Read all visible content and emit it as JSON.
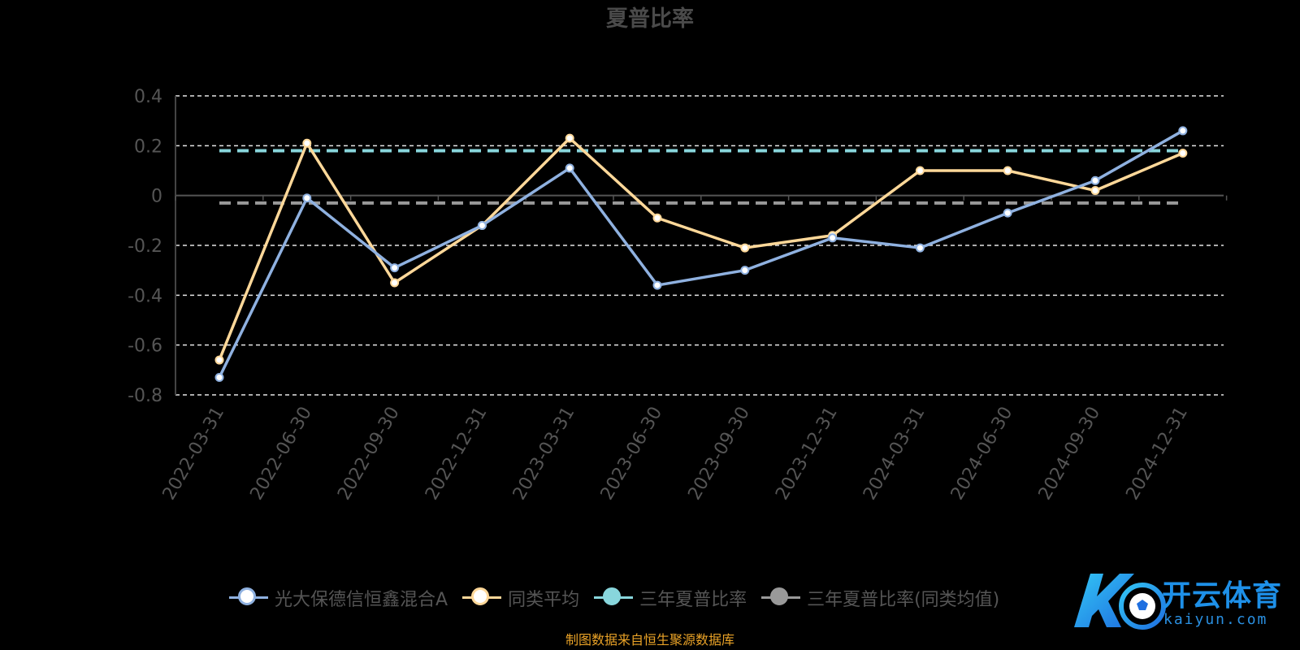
{
  "chart_data": {
    "type": "line",
    "title": "夏普比率",
    "categories": [
      "2022-03-31",
      "2022-06-30",
      "2022-09-30",
      "2022-12-31",
      "2023-03-31",
      "2023-06-30",
      "2023-09-30",
      "2023-12-31",
      "2024-03-31",
      "2024-06-30",
      "2024-09-30",
      "2024-12-31"
    ],
    "ylim": [
      -0.8,
      0.4
    ],
    "yticks": [
      0.4,
      0.2,
      0,
      -0.2,
      -0.4,
      -0.6,
      -0.8
    ],
    "ytick_labels": [
      "0.4",
      "0.2",
      "0",
      "-0.2",
      "-0.4",
      "-0.6",
      "-0.8"
    ],
    "grid": true,
    "legend_position": "bottom",
    "series": [
      {
        "name": "光大保德信恒鑫混合A",
        "color": "#8fb1e0",
        "values": [
          -0.73,
          -0.01,
          -0.29,
          -0.12,
          0.11,
          -0.36,
          -0.3,
          -0.17,
          -0.21,
          -0.07,
          0.06,
          0.26
        ]
      },
      {
        "name": "同类平均",
        "color": "#ffd899",
        "values": [
          -0.66,
          0.21,
          -0.35,
          -0.12,
          0.23,
          -0.09,
          -0.21,
          -0.16,
          0.1,
          0.1,
          0.02,
          0.17
        ]
      }
    ],
    "reference_lines": [
      {
        "name": "三年夏普比率",
        "color": "#88d6dc",
        "value": 0.18
      },
      {
        "name": "三年夏普比率(同类均值)",
        "color": "#999999",
        "value": -0.03
      }
    ]
  },
  "legend": {
    "items": [
      {
        "label": "光大保德信恒鑫混合A",
        "line_color": "#8fb1e0",
        "dot_color": "#ffffff",
        "dot_border": "#8fb1e0"
      },
      {
        "label": "同类平均",
        "line_color": "#ffd899",
        "dot_color": "#ffffff",
        "dot_border": "#ffd899"
      },
      {
        "label": "三年夏普比率",
        "line_color": "#88d6dc",
        "dot_color": "#88d6dc",
        "dot_border": "#88d6dc"
      },
      {
        "label": "三年夏普比率(同类均值)",
        "line_color": "#999999",
        "dot_color": "#999999",
        "dot_border": "#999999"
      }
    ]
  },
  "source_note": "制图数据来自恒生聚源数据库",
  "watermark": {
    "brand": "开云体育",
    "domain": "kaiyun.com",
    "colors": {
      "primary": "#1e90e8",
      "secondary": "#33c6f5"
    },
    "icon": "football-icon"
  }
}
